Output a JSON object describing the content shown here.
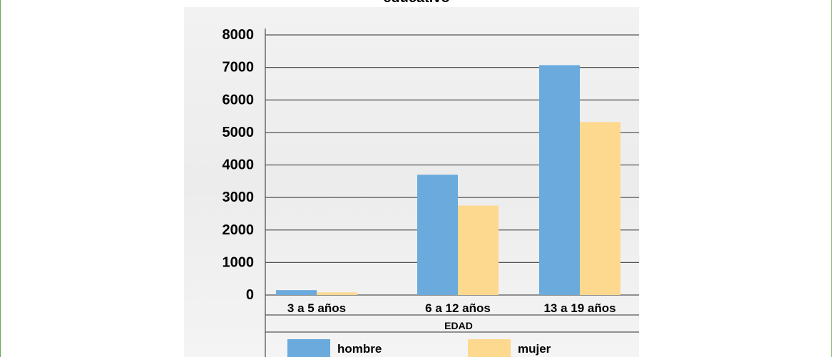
{
  "chart_data": {
    "type": "bar",
    "title": "educativo",
    "xlabel": "EDAD",
    "ylabel": "",
    "categories": [
      "3 a 5 años",
      "6 a 12 años",
      "13 a 19 años"
    ],
    "series": [
      {
        "name": "hombre",
        "values": [
          150,
          3700,
          7070
        ],
        "color": "#6aaadd"
      },
      {
        "name": "mujer",
        "values": [
          80,
          2750,
          5320
        ],
        "color": "#fdd88f"
      }
    ],
    "ylim": [
      0,
      8000
    ],
    "yticks": [
      "0",
      "1000",
      "2000",
      "3000",
      "4000",
      "5000",
      "6000",
      "7000",
      "8000"
    ],
    "grid": true,
    "legend_position": "bottom"
  }
}
